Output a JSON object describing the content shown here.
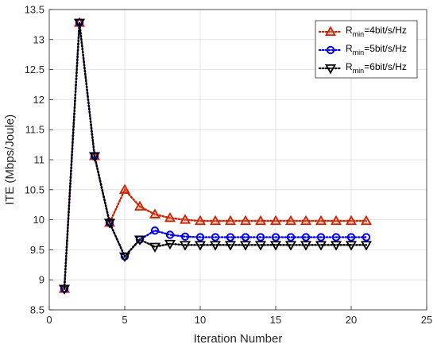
{
  "chart_data": {
    "type": "line",
    "xlabel": "Iteration Number",
    "ylabel": "ITE (Mbps/Joule)",
    "xlim": [
      0,
      25
    ],
    "ylim": [
      8.5,
      13.5
    ],
    "xticks": [
      "0",
      "5",
      "10",
      "15",
      "20",
      "25"
    ],
    "yticks": [
      "8.5",
      "9",
      "9.5",
      "10",
      "10.5",
      "11",
      "11.5",
      "12",
      "12.5",
      "13",
      "13.5"
    ],
    "grid": true,
    "legend_position": "top-right",
    "x": [
      1,
      2,
      3,
      4,
      5,
      6,
      7,
      8,
      9,
      10,
      11,
      12,
      13,
      14,
      15,
      16,
      17,
      18,
      19,
      20,
      21
    ],
    "series": [
      {
        "name_main": "R",
        "name_sub": "min",
        "name_rest": "=4bit/s/Hz",
        "color": "#cc2200",
        "marker": "triangle-up",
        "values": [
          8.85,
          13.28,
          11.06,
          9.95,
          10.5,
          10.22,
          10.09,
          10.03,
          10.0,
          9.98,
          9.98,
          9.98,
          9.98,
          9.98,
          9.98,
          9.98,
          9.98,
          9.98,
          9.98,
          9.98,
          9.98
        ]
      },
      {
        "name_main": "R",
        "name_sub": "min",
        "name_rest": "=5bit/s/Hz",
        "color": "#0000ee",
        "marker": "circle",
        "values": [
          8.85,
          13.28,
          11.06,
          9.95,
          9.39,
          9.67,
          9.82,
          9.75,
          9.72,
          9.71,
          9.71,
          9.71,
          9.71,
          9.71,
          9.71,
          9.71,
          9.71,
          9.71,
          9.71,
          9.71,
          9.71
        ]
      },
      {
        "name_main": "R",
        "name_sub": "min",
        "name_rest": "=6bit/s/Hz",
        "color": "#000000",
        "marker": "triangle-down",
        "values": [
          8.85,
          13.28,
          11.06,
          9.95,
          9.39,
          9.67,
          9.55,
          9.6,
          9.58,
          9.58,
          9.58,
          9.58,
          9.58,
          9.58,
          9.58,
          9.58,
          9.58,
          9.58,
          9.58,
          9.58,
          9.58
        ]
      }
    ]
  }
}
